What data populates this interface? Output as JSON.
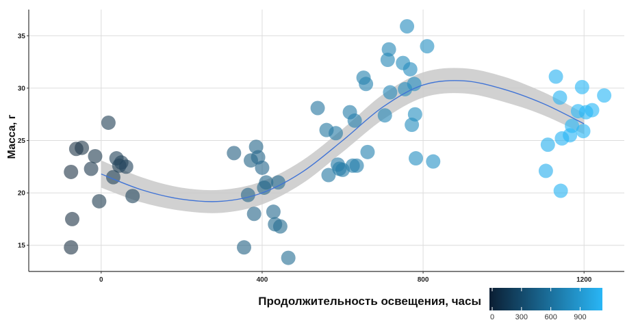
{
  "chart_data": {
    "type": "scatter",
    "title": "",
    "xlabel": "",
    "ylabel": "Масса, г",
    "xlim": [
      -180,
      1300
    ],
    "ylim": [
      12.5,
      37.5
    ],
    "x_ticks": [
      0,
      400,
      800,
      1200
    ],
    "y_ticks": [
      15,
      20,
      25,
      30,
      35
    ],
    "grid": true,
    "colorbar": {
      "title": "Продолжительность освещения, часы",
      "range": [
        0,
        1100
      ],
      "ticks": [
        0,
        300,
        600,
        900
      ],
      "color_low": "#0b1e33",
      "color_high": "#29b6f6"
    },
    "points": [
      {
        "x": -75,
        "y": 22.0
      },
      {
        "x": -72,
        "y": 17.5
      },
      {
        "x": -75,
        "y": 14.8
      },
      {
        "x": -62,
        "y": 24.2
      },
      {
        "x": -48,
        "y": 24.3
      },
      {
        "x": -25,
        "y": 22.3
      },
      {
        "x": -15,
        "y": 23.5
      },
      {
        "x": -5,
        "y": 19.2
      },
      {
        "x": 18,
        "y": 26.7
      },
      {
        "x": 30,
        "y": 21.5
      },
      {
        "x": 38,
        "y": 23.3
      },
      {
        "x": 45,
        "y": 22.6
      },
      {
        "x": 50,
        "y": 22.9
      },
      {
        "x": 62,
        "y": 22.5
      },
      {
        "x": 78,
        "y": 19.7
      },
      {
        "x": 330,
        "y": 23.8
      },
      {
        "x": 355,
        "y": 14.8
      },
      {
        "x": 365,
        "y": 19.8
      },
      {
        "x": 372,
        "y": 23.1
      },
      {
        "x": 380,
        "y": 18.0
      },
      {
        "x": 385,
        "y": 24.4
      },
      {
        "x": 390,
        "y": 23.4
      },
      {
        "x": 400,
        "y": 22.4
      },
      {
        "x": 405,
        "y": 20.5
      },
      {
        "x": 410,
        "y": 21.0
      },
      {
        "x": 428,
        "y": 18.2
      },
      {
        "x": 432,
        "y": 17.0
      },
      {
        "x": 440,
        "y": 21.0
      },
      {
        "x": 445,
        "y": 16.8
      },
      {
        "x": 465,
        "y": 13.8
      },
      {
        "x": 538,
        "y": 28.1
      },
      {
        "x": 560,
        "y": 26.0
      },
      {
        "x": 565,
        "y": 21.7
      },
      {
        "x": 583,
        "y": 25.7
      },
      {
        "x": 588,
        "y": 22.7
      },
      {
        "x": 592,
        "y": 22.3
      },
      {
        "x": 600,
        "y": 22.2
      },
      {
        "x": 618,
        "y": 27.7
      },
      {
        "x": 625,
        "y": 22.6
      },
      {
        "x": 630,
        "y": 26.9
      },
      {
        "x": 635,
        "y": 22.6
      },
      {
        "x": 652,
        "y": 31.0
      },
      {
        "x": 658,
        "y": 30.4
      },
      {
        "x": 662,
        "y": 23.9
      },
      {
        "x": 705,
        "y": 27.4
      },
      {
        "x": 712,
        "y": 32.7
      },
      {
        "x": 715,
        "y": 33.7
      },
      {
        "x": 718,
        "y": 29.6
      },
      {
        "x": 750,
        "y": 32.4
      },
      {
        "x": 755,
        "y": 29.9
      },
      {
        "x": 760,
        "y": 35.9
      },
      {
        "x": 768,
        "y": 31.8
      },
      {
        "x": 772,
        "y": 26.5
      },
      {
        "x": 778,
        "y": 30.4
      },
      {
        "x": 780,
        "y": 27.5
      },
      {
        "x": 782,
        "y": 23.3
      },
      {
        "x": 810,
        "y": 34.0
      },
      {
        "x": 825,
        "y": 23.0
      },
      {
        "x": 1105,
        "y": 22.1
      },
      {
        "x": 1110,
        "y": 24.6
      },
      {
        "x": 1130,
        "y": 31.1
      },
      {
        "x": 1140,
        "y": 29.1
      },
      {
        "x": 1142,
        "y": 20.2
      },
      {
        "x": 1145,
        "y": 25.2
      },
      {
        "x": 1165,
        "y": 25.5
      },
      {
        "x": 1170,
        "y": 26.4
      },
      {
        "x": 1185,
        "y": 27.8
      },
      {
        "x": 1195,
        "y": 30.1
      },
      {
        "x": 1198,
        "y": 25.9
      },
      {
        "x": 1205,
        "y": 27.7
      },
      {
        "x": 1220,
        "y": 27.9
      },
      {
        "x": 1250,
        "y": 29.3
      }
    ],
    "trend": {
      "x": [
        0,
        100,
        200,
        300,
        400,
        500,
        600,
        700,
        800,
        900,
        1000,
        1100,
        1200
      ],
      "y": [
        21.8,
        20.3,
        19.4,
        19.2,
        20.0,
        22.0,
        25.0,
        28.2,
        30.3,
        30.7,
        29.9,
        28.5,
        26.6
      ],
      "band": [
        1.3,
        1.2,
        1.1,
        1.1,
        1.1,
        1.1,
        1.1,
        1.2,
        1.2,
        1.2,
        1.2,
        1.1,
        1.0
      ]
    }
  }
}
